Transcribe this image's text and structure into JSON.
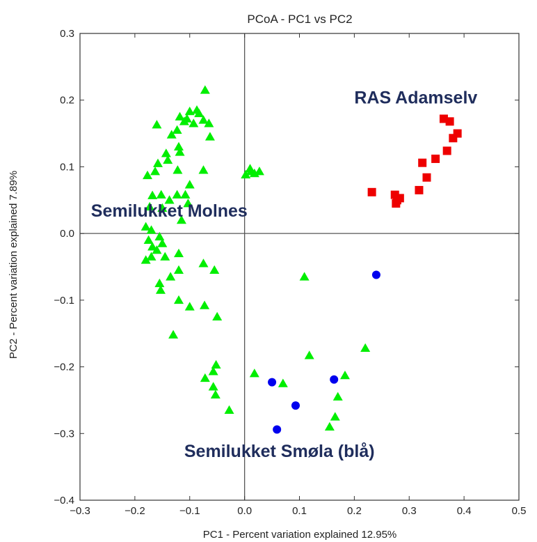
{
  "chart_data": {
    "type": "scatter",
    "title": "PCoA - PC1 vs PC2",
    "xlabel": "PC1 - Percent variation explained 12.95%",
    "ylabel": "PC2 - Percent variation explained 7.89%",
    "xlim": [
      -0.3,
      0.5
    ],
    "ylim": [
      -0.4,
      0.3
    ],
    "xticks": [
      "−0.3",
      "−0.2",
      "−0.1",
      "0.0",
      "0.1",
      "0.2",
      "0.3",
      "0.4",
      "0.5"
    ],
    "yticks": [
      "0.3",
      "0.2",
      "0.1",
      "0.0",
      "−0.1",
      "−0.2",
      "−0.3",
      "−0.4"
    ],
    "xtick_values": [
      -0.3,
      -0.2,
      -0.1,
      0.0,
      0.1,
      0.2,
      0.3,
      0.4,
      0.5
    ],
    "ytick_values": [
      0.3,
      0.2,
      0.1,
      0.0,
      -0.1,
      -0.2,
      -0.3,
      -0.4
    ],
    "grid": false,
    "zero_lines": true,
    "annotations": [
      {
        "text": "RAS Adamselv",
        "x": 0.2,
        "y": 0.195,
        "color": "#1f2d5c"
      },
      {
        "text": "Semilukket Molnes",
        "x": -0.28,
        "y": 0.025,
        "color": "#1f2d5c"
      },
      {
        "text": "Semilukket Smøla (blå)",
        "x": -0.11,
        "y": -0.335,
        "color": "#1f2d5c"
      }
    ],
    "series": [
      {
        "marker": "triangle",
        "color": "#00ee00",
        "points": [
          [
            -0.072,
            0.215
          ],
          [
            -0.087,
            0.185
          ],
          [
            -0.1,
            0.183
          ],
          [
            -0.083,
            0.18
          ],
          [
            -0.118,
            0.175
          ],
          [
            -0.105,
            0.172
          ],
          [
            -0.11,
            0.168
          ],
          [
            -0.075,
            0.17
          ],
          [
            -0.065,
            0.165
          ],
          [
            -0.093,
            0.165
          ],
          [
            -0.16,
            0.163
          ],
          [
            -0.123,
            0.155
          ],
          [
            -0.133,
            0.148
          ],
          [
            -0.063,
            0.145
          ],
          [
            -0.12,
            0.13
          ],
          [
            -0.118,
            0.122
          ],
          [
            -0.143,
            0.12
          ],
          [
            -0.14,
            0.11
          ],
          [
            -0.158,
            0.105
          ],
          [
            -0.122,
            0.095
          ],
          [
            -0.075,
            0.095
          ],
          [
            -0.163,
            0.093
          ],
          [
            -0.177,
            0.087
          ],
          [
            -0.1,
            0.073
          ],
          [
            -0.108,
            0.058
          ],
          [
            -0.123,
            0.058
          ],
          [
            -0.152,
            0.058
          ],
          [
            -0.168,
            0.057
          ],
          [
            -0.137,
            0.05
          ],
          [
            -0.173,
            0.04
          ],
          [
            -0.15,
            0.038
          ],
          [
            -0.103,
            0.045
          ],
          [
            -0.115,
            0.02
          ],
          [
            -0.18,
            0.01
          ],
          [
            -0.17,
            0.005
          ],
          [
            -0.175,
            -0.01
          ],
          [
            -0.155,
            -0.005
          ],
          [
            -0.15,
            -0.015
          ],
          [
            -0.168,
            -0.02
          ],
          [
            -0.16,
            -0.025
          ],
          [
            -0.145,
            -0.035
          ],
          [
            -0.12,
            -0.03
          ],
          [
            -0.18,
            -0.04
          ],
          [
            -0.17,
            -0.035
          ],
          [
            -0.075,
            -0.045
          ],
          [
            -0.055,
            -0.055
          ],
          [
            -0.12,
            -0.055
          ],
          [
            -0.135,
            -0.065
          ],
          [
            -0.155,
            -0.075
          ],
          [
            -0.153,
            -0.085
          ],
          [
            -0.12,
            -0.1
          ],
          [
            -0.1,
            -0.11
          ],
          [
            -0.073,
            -0.108
          ],
          [
            -0.05,
            -0.125
          ],
          [
            -0.13,
            -0.152
          ],
          [
            0.002,
            0.088
          ],
          [
            0.01,
            0.097
          ],
          [
            0.012,
            0.093
          ],
          [
            0.018,
            0.09
          ],
          [
            0.027,
            0.093
          ],
          [
            0.109,
            -0.065
          ],
          [
            0.118,
            -0.183
          ],
          [
            0.22,
            -0.172
          ],
          [
            0.183,
            -0.213
          ],
          [
            0.17,
            -0.245
          ],
          [
            0.165,
            -0.275
          ],
          [
            0.155,
            -0.29
          ],
          [
            0.07,
            -0.225
          ],
          [
            0.018,
            -0.21
          ],
          [
            -0.052,
            -0.197
          ],
          [
            -0.057,
            -0.207
          ],
          [
            -0.072,
            -0.217
          ],
          [
            -0.057,
            -0.23
          ],
          [
            -0.053,
            -0.242
          ],
          [
            -0.028,
            -0.265
          ]
        ]
      },
      {
        "marker": "square",
        "color": "#ee0000",
        "points": [
          [
            0.363,
            0.172
          ],
          [
            0.374,
            0.168
          ],
          [
            0.388,
            0.15
          ],
          [
            0.38,
            0.143
          ],
          [
            0.369,
            0.124
          ],
          [
            0.348,
            0.112
          ],
          [
            0.324,
            0.106
          ],
          [
            0.332,
            0.084
          ],
          [
            0.318,
            0.065
          ],
          [
            0.232,
            0.062
          ],
          [
            0.274,
            0.058
          ],
          [
            0.283,
            0.053
          ],
          [
            0.278,
            0.05
          ],
          [
            0.276,
            0.045
          ]
        ]
      },
      {
        "marker": "circle",
        "color": "#0000ee",
        "points": [
          [
            0.24,
            -0.062
          ],
          [
            0.05,
            -0.223
          ],
          [
            0.163,
            -0.219
          ],
          [
            0.093,
            -0.258
          ],
          [
            0.059,
            -0.294
          ]
        ]
      }
    ]
  }
}
